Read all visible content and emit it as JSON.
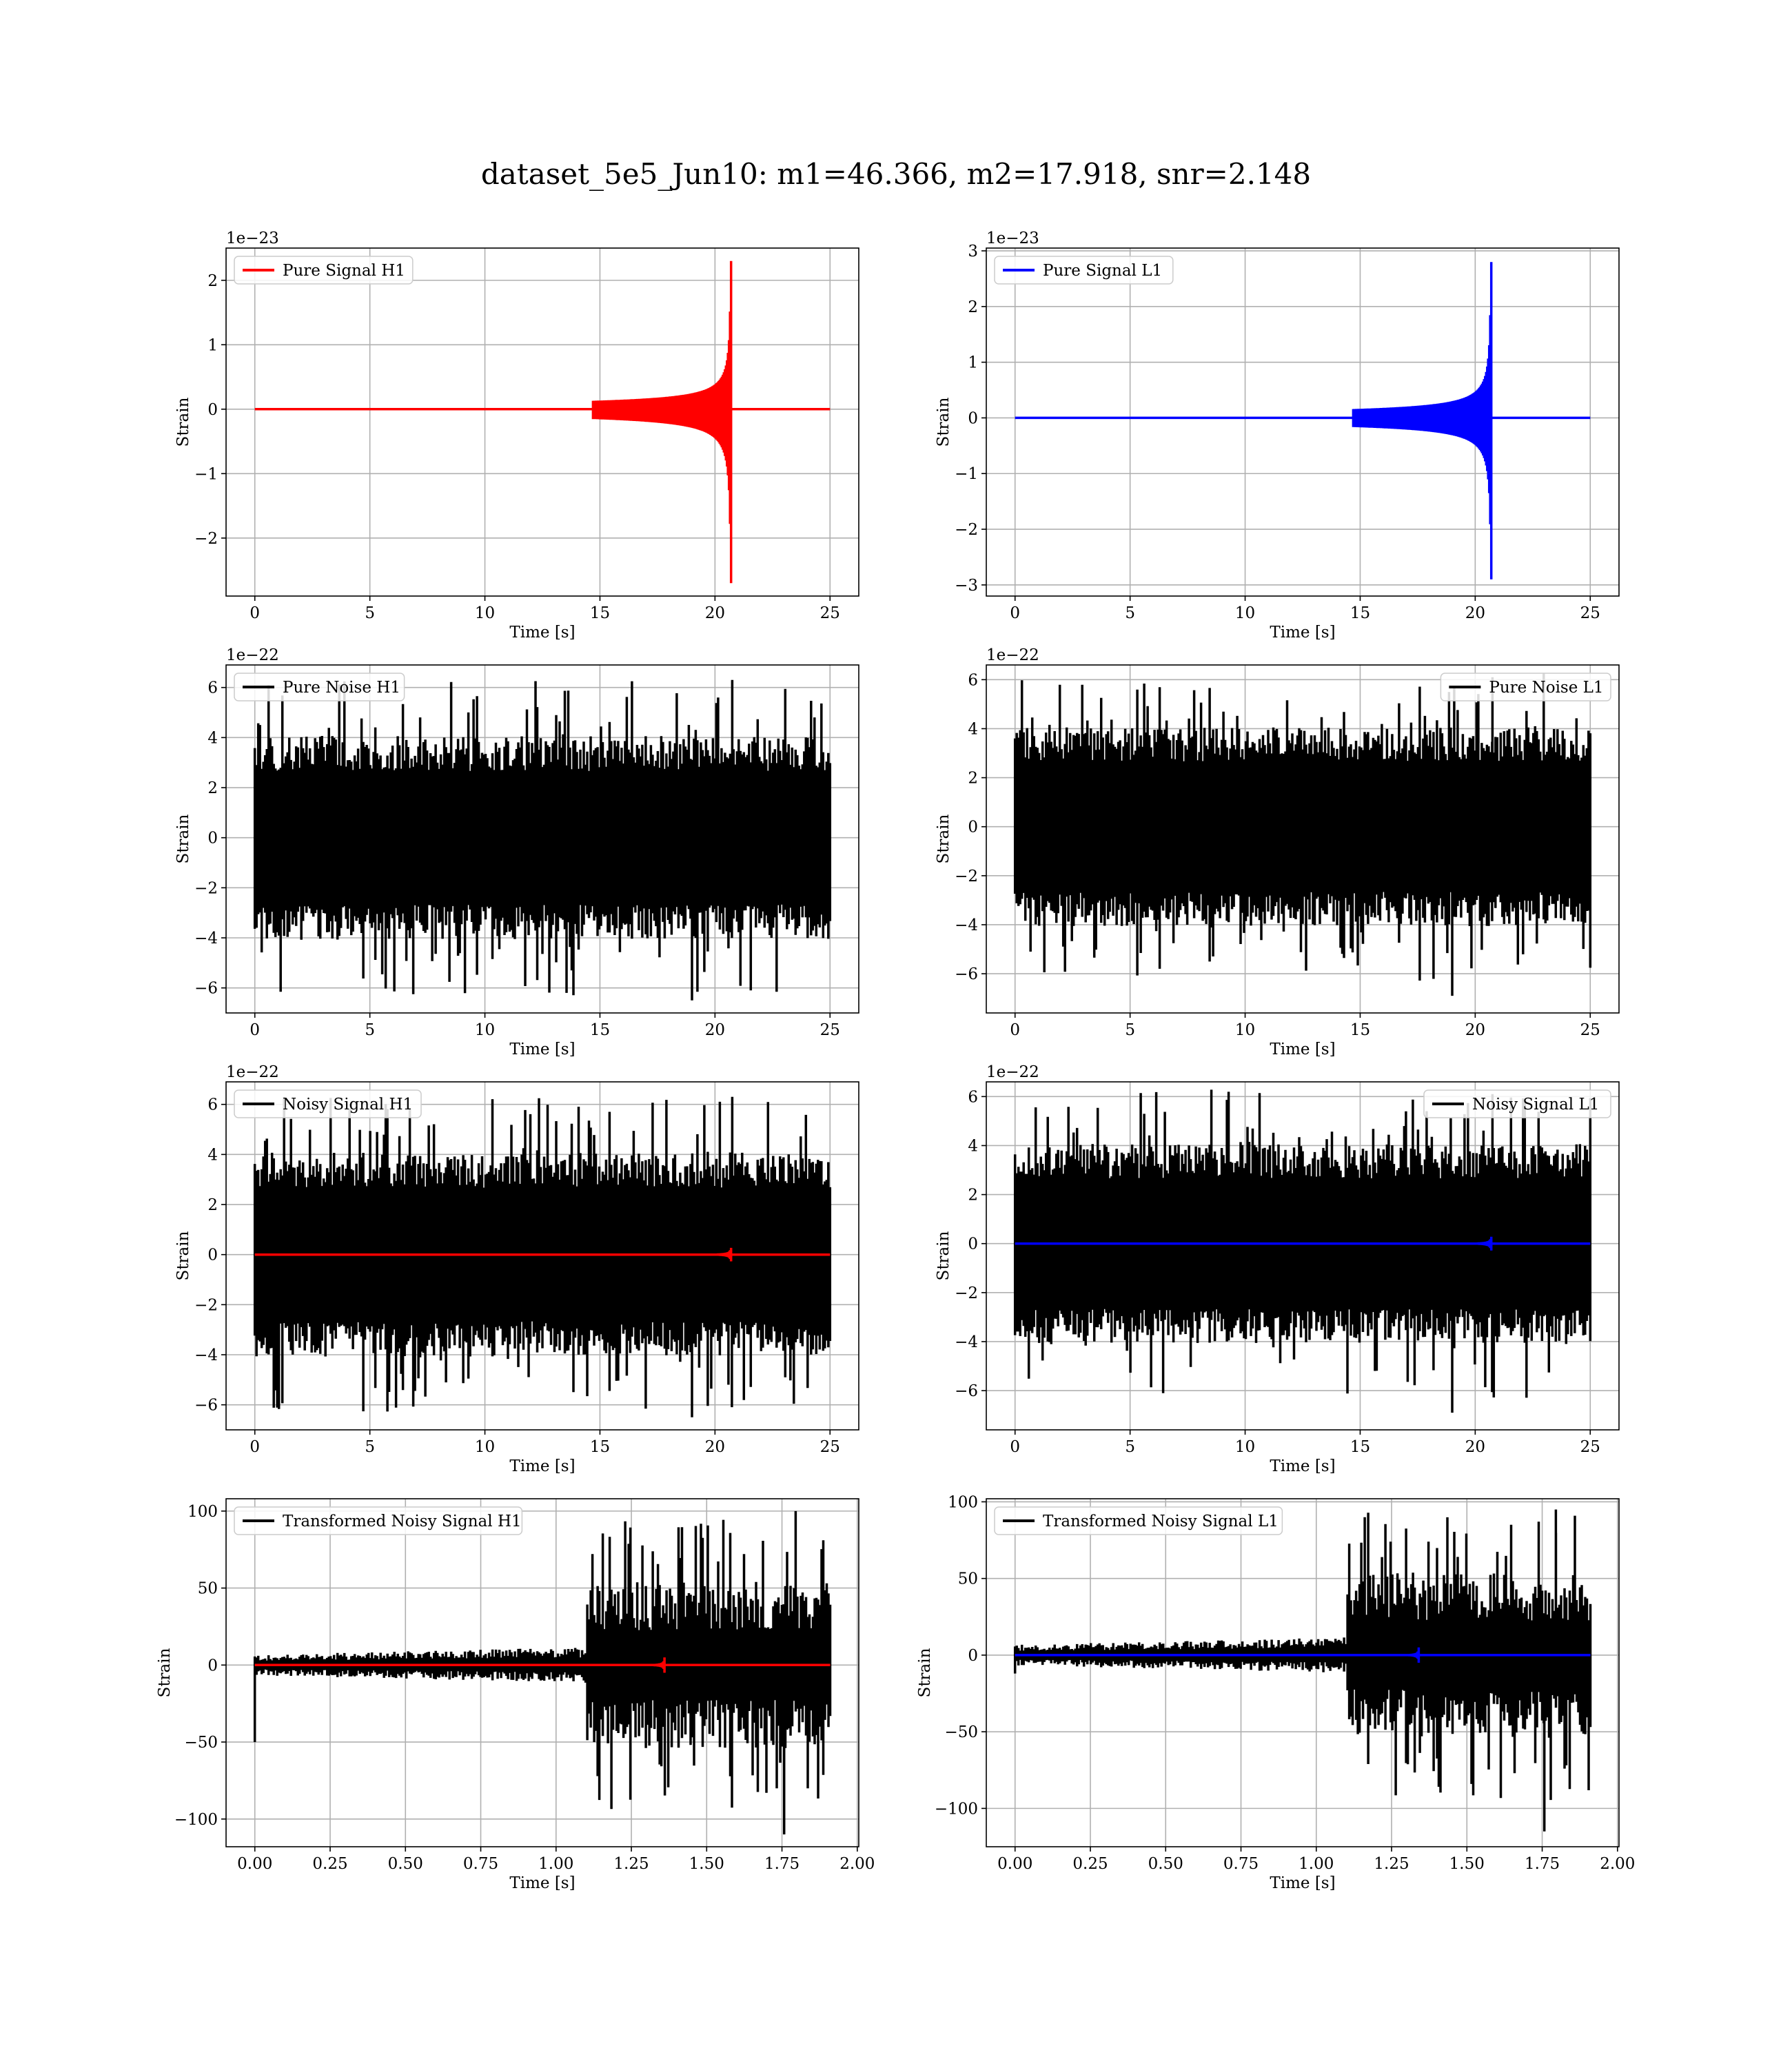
{
  "title": "dataset_5e5_Jun10: m1=46.366, m2=17.918, snr=2.148",
  "colors": {
    "h1_signal": "#ff0000",
    "l1_signal": "#0000ff",
    "noise": "#000000",
    "grid": "#b0b0b0"
  },
  "chart_data": [
    {
      "id": "pure-signal-h1",
      "type": "line",
      "xlabel": "Time [s]",
      "ylabel": "Strain",
      "offset_text": "1e−23",
      "xlim": [
        -1.25,
        26.25
      ],
      "ylim": [
        -2.9,
        2.5
      ],
      "xticks": [
        0,
        5,
        10,
        15,
        20,
        25
      ],
      "xtick_labels": [
        "0",
        "5",
        "10",
        "15",
        "20",
        "25"
      ],
      "yticks": [
        -2,
        -1,
        0,
        1,
        2
      ],
      "ytick_labels": [
        "−2",
        "−1",
        "0",
        "1",
        "2"
      ],
      "legend_position": "top-left",
      "grid": true,
      "series": [
        {
          "name": "Pure Signal H1",
          "color": "#ff0000",
          "kind": "chirp",
          "duration": 25,
          "t_merge": 20.7,
          "peak_pos": 2.3,
          "peak_neg": -2.7
        }
      ]
    },
    {
      "id": "pure-signal-l1",
      "type": "line",
      "xlabel": "Time [s]",
      "ylabel": "Strain",
      "offset_text": "1e−23",
      "xlim": [
        -1.25,
        26.25
      ],
      "ylim": [
        -3.2,
        3.05
      ],
      "xticks": [
        0,
        5,
        10,
        15,
        20,
        25
      ],
      "xtick_labels": [
        "0",
        "5",
        "10",
        "15",
        "20",
        "25"
      ],
      "yticks": [
        -3,
        -2,
        -1,
        0,
        1,
        2,
        3
      ],
      "ytick_labels": [
        "−3",
        "−2",
        "−1",
        "0",
        "1",
        "2",
        "3"
      ],
      "legend_position": "top-left",
      "grid": true,
      "series": [
        {
          "name": "Pure Signal L1",
          "color": "#0000ff",
          "kind": "chirp",
          "duration": 25,
          "t_merge": 20.7,
          "peak_pos": 2.8,
          "peak_neg": -2.9
        }
      ]
    },
    {
      "id": "pure-noise-h1",
      "type": "line",
      "xlabel": "Time [s]",
      "ylabel": "Strain",
      "offset_text": "1e−22",
      "xlim": [
        -1.25,
        26.25
      ],
      "ylim": [
        -7.0,
        6.9
      ],
      "xticks": [
        0,
        5,
        10,
        15,
        20,
        25
      ],
      "xtick_labels": [
        "0",
        "5",
        "10",
        "15",
        "20",
        "25"
      ],
      "yticks": [
        -6,
        -4,
        -2,
        0,
        2,
        4,
        6
      ],
      "ytick_labels": [
        "−6",
        "−4",
        "−2",
        "0",
        "2",
        "4",
        "6"
      ],
      "legend_position": "top-left",
      "grid": true,
      "series": [
        {
          "name": "Pure Noise H1",
          "color": "#000000",
          "kind": "noise",
          "duration": 25,
          "band": 3.7,
          "spike_pos": 6.3,
          "spike_neg": -6.5
        }
      ]
    },
    {
      "id": "pure-noise-l1",
      "type": "line",
      "xlabel": "Time [s]",
      "ylabel": "Strain",
      "offset_text": "1e−22",
      "xlim": [
        -1.25,
        26.25
      ],
      "ylim": [
        -7.6,
        6.6
      ],
      "xticks": [
        0,
        5,
        10,
        15,
        20,
        25
      ],
      "xtick_labels": [
        "0",
        "5",
        "10",
        "15",
        "20",
        "25"
      ],
      "yticks": [
        -6,
        -4,
        -2,
        0,
        2,
        4,
        6
      ],
      "ytick_labels": [
        "−6",
        "−4",
        "−2",
        "0",
        "2",
        "4",
        "6"
      ],
      "legend_position": "top-right",
      "grid": true,
      "series": [
        {
          "name": "Pure Noise L1",
          "color": "#000000",
          "kind": "noise",
          "duration": 25,
          "band": 3.7,
          "spike_pos": 6.1,
          "spike_neg": -6.9
        }
      ]
    },
    {
      "id": "noisy-signal-h1",
      "type": "line",
      "xlabel": "Time [s]",
      "ylabel": "Strain",
      "offset_text": "1e−22",
      "xlim": [
        -1.25,
        26.25
      ],
      "ylim": [
        -7.0,
        6.9
      ],
      "xticks": [
        0,
        5,
        10,
        15,
        20,
        25
      ],
      "xtick_labels": [
        "0",
        "5",
        "10",
        "15",
        "20",
        "25"
      ],
      "yticks": [
        -6,
        -4,
        -2,
        0,
        2,
        4,
        6
      ],
      "ytick_labels": [
        "−6",
        "−4",
        "−2",
        "0",
        "2",
        "4",
        "6"
      ],
      "legend_position": "top-left",
      "grid": true,
      "series": [
        {
          "name": "Noisy Signal H1",
          "color": "#000000",
          "kind": "noise",
          "duration": 25,
          "band": 3.7,
          "spike_pos": 6.3,
          "spike_neg": -6.5
        },
        {
          "color": "#ff0000",
          "kind": "chirp",
          "duration": 25,
          "t_merge": 20.7,
          "peak_pos": 0.27,
          "peak_neg": -0.27
        }
      ]
    },
    {
      "id": "noisy-signal-l1",
      "type": "line",
      "xlabel": "Time [s]",
      "ylabel": "Strain",
      "offset_text": "1e−22",
      "xlim": [
        -1.25,
        26.25
      ],
      "ylim": [
        -7.6,
        6.6
      ],
      "xticks": [
        0,
        5,
        10,
        15,
        20,
        25
      ],
      "xtick_labels": [
        "0",
        "5",
        "10",
        "15",
        "20",
        "25"
      ],
      "yticks": [
        -6,
        -4,
        -2,
        0,
        2,
        4,
        6
      ],
      "ytick_labels": [
        "−6",
        "−4",
        "−2",
        "0",
        "2",
        "4",
        "6"
      ],
      "legend_position": "top-right",
      "grid": true,
      "series": [
        {
          "name": "Noisy Signal L1",
          "color": "#000000",
          "kind": "noise",
          "duration": 25,
          "band": 3.7,
          "spike_pos": 6.1,
          "spike_neg": -6.9
        },
        {
          "color": "#0000ff",
          "kind": "chirp",
          "duration": 25,
          "t_merge": 20.7,
          "peak_pos": 0.28,
          "peak_neg": -0.28
        }
      ]
    },
    {
      "id": "transformed-noisy-signal-h1",
      "type": "line",
      "xlabel": "Time [s]",
      "ylabel": "Strain",
      "offset_text": "",
      "xlim": [
        -0.0955,
        2.005
      ],
      "ylim": [
        -118,
        108
      ],
      "xticks": [
        0,
        0.25,
        0.5,
        0.75,
        1.0,
        1.25,
        1.5,
        1.75,
        2.0
      ],
      "xtick_labels": [
        "0.00",
        "0.25",
        "0.50",
        "0.75",
        "1.00",
        "1.25",
        "1.50",
        "1.75",
        "2.00"
      ],
      "yticks": [
        -100,
        -50,
        0,
        50,
        100
      ],
      "ytick_labels": [
        "−100",
        "−50",
        "0",
        "50",
        "100"
      ],
      "legend_position": "top-left",
      "grid": true,
      "series": [
        {
          "name": "Transformed Noisy Signal H1",
          "color": "#000000",
          "kind": "whitened",
          "duration": 1.91,
          "t_step": 1.1,
          "band_low": 8,
          "band_high": 45,
          "spike_pos": 100,
          "spike_neg": -110,
          "start_spike": -50
        },
        {
          "color": "#ff0000",
          "kind": "chirp",
          "duration": 1.91,
          "t_merge": 1.36,
          "t_start": 1.1,
          "peak_pos": 5,
          "peak_neg": -5
        }
      ]
    },
    {
      "id": "transformed-noisy-signal-l1",
      "type": "line",
      "xlabel": "Time [s]",
      "ylabel": "Strain",
      "offset_text": "",
      "xlim": [
        -0.0955,
        2.005
      ],
      "ylim": [
        -125,
        102
      ],
      "xticks": [
        0,
        0.25,
        0.5,
        0.75,
        1.0,
        1.25,
        1.5,
        1.75,
        2.0
      ],
      "xtick_labels": [
        "0.00",
        "0.25",
        "0.50",
        "0.75",
        "1.00",
        "1.25",
        "1.50",
        "1.75",
        "2.00"
      ],
      "yticks": [
        -100,
        -50,
        0,
        50,
        100
      ],
      "ytick_labels": [
        "−100",
        "−50",
        "0",
        "50",
        "100"
      ],
      "legend_position": "top-left",
      "grid": true,
      "series": [
        {
          "name": "Transformed Noisy Signal L1",
          "color": "#000000",
          "kind": "whitened",
          "duration": 1.91,
          "t_step": 1.1,
          "band_low": 8,
          "band_high": 45,
          "spike_pos": 95,
          "spike_neg": -115,
          "start_spike": -12
        },
        {
          "color": "#0000ff",
          "kind": "chirp",
          "duration": 1.91,
          "t_merge": 1.34,
          "t_start": 1.1,
          "peak_pos": 5,
          "peak_neg": -5
        }
      ]
    }
  ]
}
